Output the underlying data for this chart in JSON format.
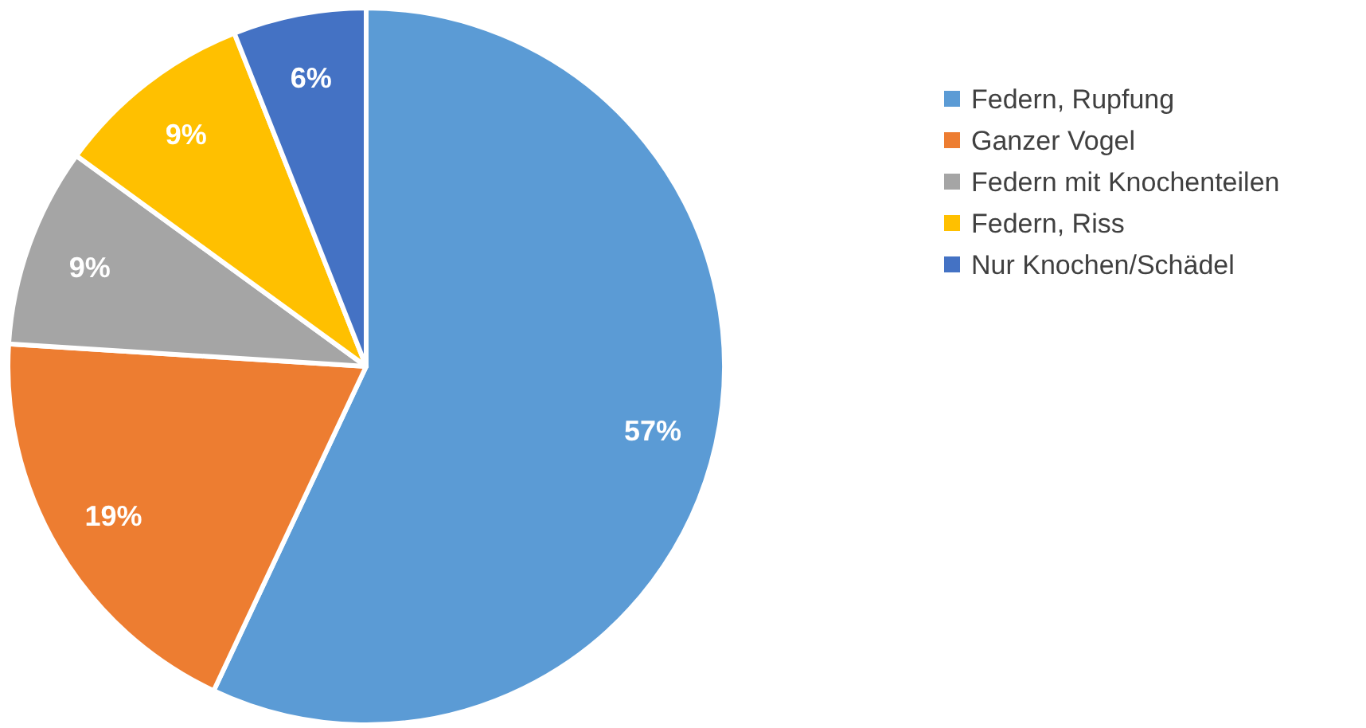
{
  "chart_data": {
    "type": "pie",
    "categories": [
      "Federn, Rupfung",
      "Ganzer Vogel",
      "Federn mit Knochenteilen",
      "Federn, Riss",
      "Nur Knochen/Schädel"
    ],
    "values": [
      57,
      19,
      9,
      9,
      6
    ],
    "colors": [
      "#5b9bd5",
      "#ed7d31",
      "#a5a5a5",
      "#ffc000",
      "#4472c4"
    ],
    "value_labels": [
      "57%",
      "19%",
      "9%",
      "9%",
      "6%"
    ],
    "legend": "right"
  }
}
